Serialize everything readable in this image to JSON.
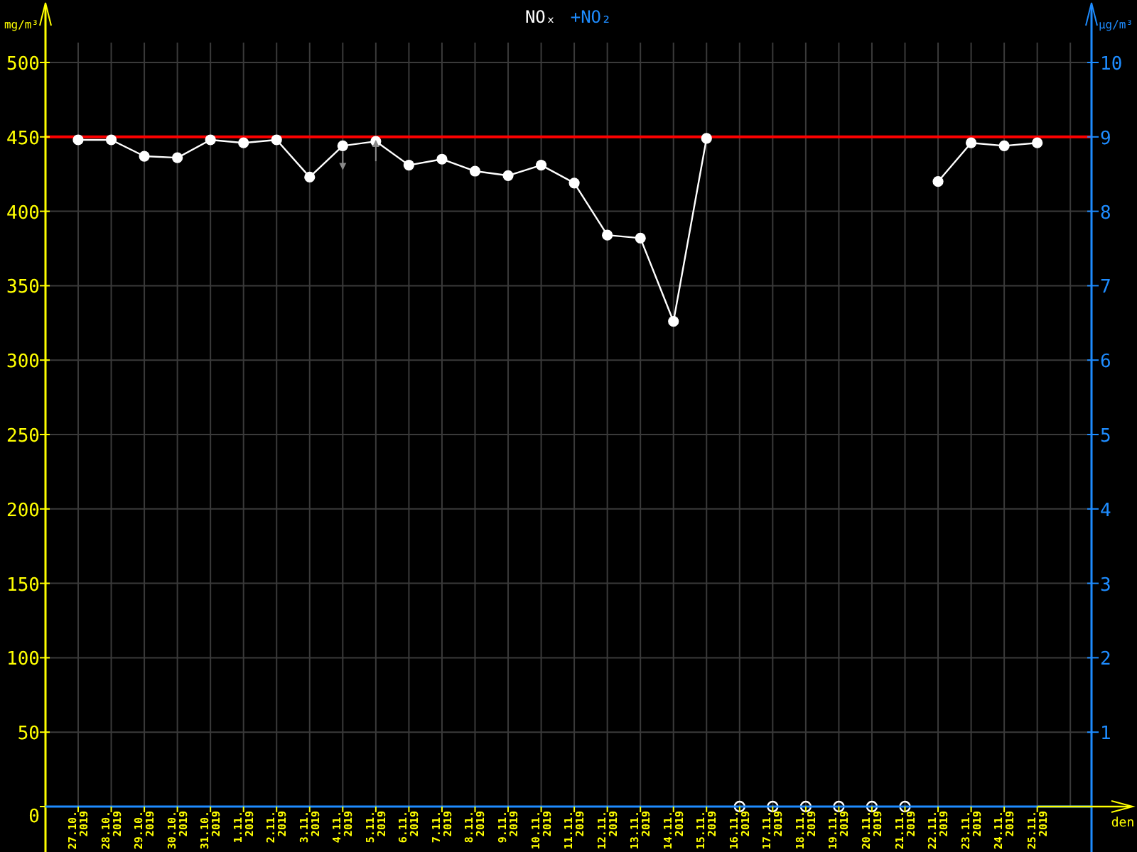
{
  "chart_data": {
    "type": "line",
    "xlabel": "den",
    "ylabel": "mg/m³",
    "y2label": "µg/m³",
    "categories": [
      "27.10. 2019",
      "28.10. 2019",
      "29.10. 2019",
      "30.10. 2019",
      "31.10. 2019",
      "1.11. 2019",
      "2.11. 2019",
      "3.11. 2019",
      "4.11. 2019",
      "5.11. 2019",
      "6.11. 2019",
      "7.11. 2019",
      "8.11. 2019",
      "9.11. 2019",
      "10.11. 2019",
      "11.11. 2019",
      "12.11. 2019",
      "13.11. 2019",
      "14.11. 2019",
      "15.11. 2019",
      "16.11. 2019",
      "17.11. 2019",
      "18.11. 2019",
      "19.11. 2019",
      "20.11. 2019",
      "21.11. 2019",
      "22.11. 2019",
      "23.11. 2019",
      "24.11. 2019",
      "25.11. 2019"
    ],
    "series": [
      {
        "name": "NOₓ",
        "color": "#ffffff",
        "values": [
          448,
          448,
          437,
          436,
          448,
          446,
          448,
          423,
          444,
          447,
          431,
          435,
          427,
          424,
          431,
          419,
          384,
          382,
          326,
          449,
          null,
          null,
          null,
          null,
          null,
          null,
          420,
          446,
          444,
          446
        ]
      },
      {
        "name": "+NO₂",
        "color": "#1e8cff",
        "values": [
          null,
          null,
          null,
          null,
          null,
          null,
          null,
          null,
          null,
          null,
          null,
          null,
          null,
          null,
          null,
          null,
          null,
          null,
          null,
          null,
          null,
          null,
          null,
          null,
          null,
          null,
          null,
          null,
          null,
          null
        ]
      },
      {
        "type": "scatter",
        "color": "#ffffff",
        "values": [
          null,
          null,
          null,
          null,
          null,
          null,
          null,
          null,
          null,
          null,
          null,
          null,
          null,
          null,
          null,
          null,
          null,
          null,
          null,
          null,
          0,
          0,
          0,
          0,
          0,
          0,
          null,
          null,
          null,
          null
        ]
      }
    ],
    "ylim": [
      0,
      500
    ],
    "yticks": [
      0,
      50,
      100,
      150,
      200,
      250,
      300,
      350,
      400,
      450,
      500
    ],
    "y2lim": [
      0,
      10
    ],
    "y2ticks": [
      1,
      2,
      3,
      4,
      5,
      6,
      7,
      8,
      9,
      10
    ],
    "ref_lines": [
      {
        "axis": "y",
        "value": 450,
        "color": "#ff0000"
      }
    ],
    "grid": true,
    "legend": "top",
    "marker": "circle",
    "line_style": "solid"
  }
}
